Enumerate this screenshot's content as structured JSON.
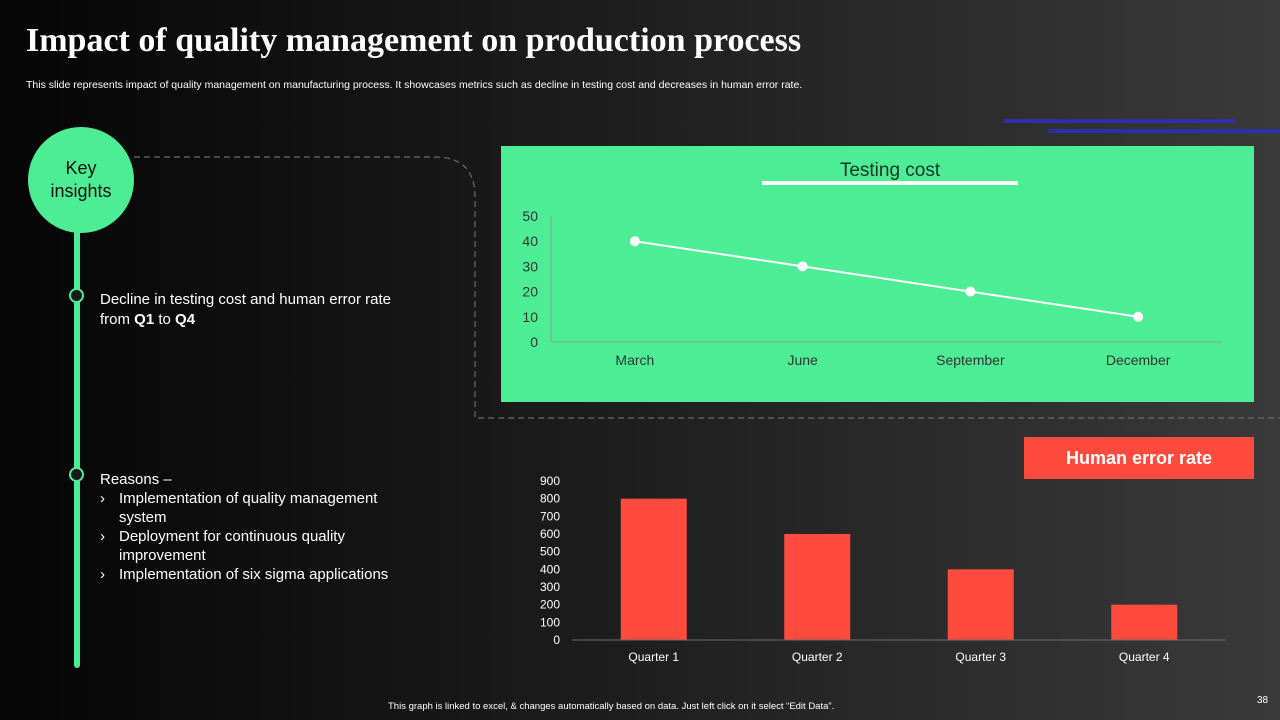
{
  "slide": {
    "title": "Impact of  quality management on production process",
    "subtitle": "This slide represents impact of quality management on manufacturing process. It showcases metrics such as decline in testing cost and decreases in human error rate.",
    "footnote": "This graph is linked to excel, & changes automatically based on data. Just left click on it select “Edit Data”.",
    "page_number": "38"
  },
  "insights": {
    "heading": "Key\ninsights",
    "first_text_1": "Decline in testing cost and human error rate from ",
    "first_bold_1": "Q1",
    "first_text_2": " to ",
    "first_bold_2": "Q4",
    "reasons_title": "Reasons –",
    "reasons": [
      " Implementation of quality management system",
      "Deployment for continuous quality improvement",
      "Implementation of six sigma applications"
    ],
    "bullet_glyph": "›"
  },
  "colors": {
    "accent_green": "#4ded95",
    "bar_red": "#ff4b3e",
    "deco_blue": "#2e2ea8"
  },
  "chart_data": [
    {
      "type": "line",
      "title": "Testing cost",
      "categories": [
        "March",
        "June",
        "September",
        "December"
      ],
      "values": [
        40,
        30,
        20,
        10
      ],
      "ylim": [
        0,
        50
      ],
      "yticks": [
        0,
        10,
        20,
        30,
        40,
        50
      ],
      "xlabel": "",
      "ylabel": "",
      "grid": false
    },
    {
      "type": "bar",
      "title": "Human error rate",
      "categories": [
        "Quarter 1",
        "Quarter 2",
        "Quarter 3",
        "Quarter 4"
      ],
      "values": [
        800,
        600,
        400,
        200
      ],
      "ylim": [
        0,
        900
      ],
      "yticks": [
        0,
        100,
        200,
        300,
        400,
        500,
        600,
        700,
        800,
        900
      ],
      "xlabel": "",
      "ylabel": "",
      "grid": false
    }
  ]
}
